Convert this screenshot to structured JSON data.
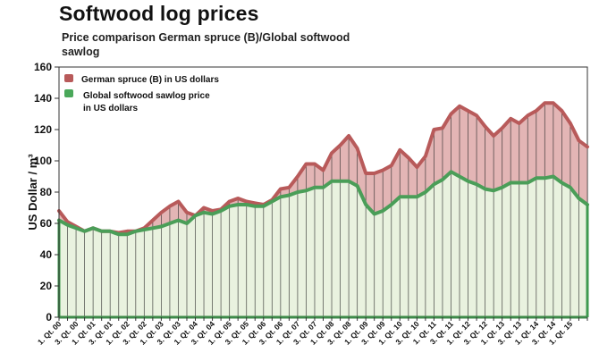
{
  "chart_data": {
    "type": "area",
    "title": "Softwood log prices",
    "subtitle": "Price comparison German spruce (B)/Global softwood sawlog",
    "xlabel": "",
    "ylabel": "US Dollar / m³",
    "ylim": [
      0,
      160
    ],
    "yticks": [
      0,
      20,
      40,
      60,
      80,
      100,
      120,
      140,
      160
    ],
    "grid": false,
    "legend_position": "top-left",
    "x_tick_labels": [
      "1. Qt. 00",
      "3. Qt. 00",
      "1. Qt. 01",
      "3. Qt. 01",
      "1. Qt. 02",
      "3. Qt. 02",
      "1. Qt. 03",
      "3. Qt. 03",
      "1. Qt. 04",
      "3. Qt. 04",
      "1. Qt. 05",
      "3. Qt. 05",
      "1. Qt. 06",
      "3. Qt. 06",
      "1. Qt. 07",
      "3. Qt. 07",
      "1. Qt. 08",
      "3. Qt. 08",
      "1. Qt. 09",
      "3. Qt. 09",
      "1. Qt. 10",
      "3. Qt. 10",
      "1. Qt. 11",
      "3. Qt. 11",
      "1. Qt. 12",
      "3. Qt. 12",
      "1. Qt. 13",
      "3. Qt. 13",
      "1. Qt. 14",
      "3. Qt. 14",
      "1. Qt. 15"
    ],
    "series": [
      {
        "name": "German spruce (B) in US dollars",
        "color": "#b85a5a",
        "fill": "#e3b5b5",
        "values": [
          68,
          61,
          58,
          55,
          57,
          55,
          55,
          54,
          55,
          55,
          57,
          62,
          67,
          71,
          74,
          67,
          65,
          70,
          68,
          69,
          74,
          76,
          74,
          73,
          72,
          75,
          82,
          83,
          90,
          98,
          98,
          94,
          105,
          110,
          116,
          108,
          92,
          92,
          94,
          97,
          107,
          102,
          96,
          103,
          120,
          121,
          130,
          135,
          132,
          129,
          122,
          116,
          121,
          127,
          124,
          129,
          132,
          137,
          137,
          132,
          124,
          113,
          109
        ]
      },
      {
        "name": "Global softwood sawlog price in US dollars",
        "color": "#4a9e58",
        "fill": "#e9f2df",
        "values": [
          62,
          59,
          57,
          55,
          57,
          55,
          55,
          53,
          53,
          55,
          56,
          57,
          58,
          60,
          62,
          60,
          65,
          67,
          66,
          68,
          71,
          72,
          72,
          71,
          71,
          74,
          77,
          78,
          80,
          81,
          83,
          83,
          87,
          87,
          87,
          84,
          72,
          66,
          68,
          72,
          77,
          77,
          77,
          80,
          85,
          88,
          93,
          90,
          87,
          85,
          82,
          81,
          83,
          86,
          86,
          86,
          89,
          89,
          90,
          86,
          83,
          76,
          72
        ]
      }
    ]
  },
  "legend": {
    "german_label": "German spruce (B) in US dollars",
    "global_label_line1": "Global softwood sawlog price",
    "global_label_line2": "in US dollars"
  }
}
